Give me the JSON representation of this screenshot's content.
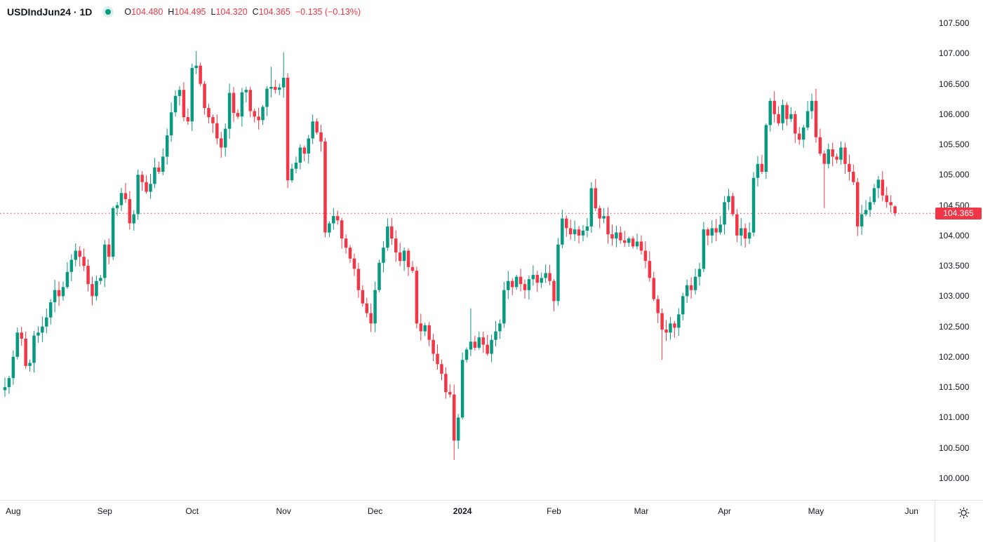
{
  "header": {
    "symbol": "USDIndJun24",
    "separator": "·",
    "interval": "1D",
    "ohlc": {
      "open_label": "O",
      "open": "104.480",
      "high_label": "H",
      "high": "104.495",
      "low_label": "L",
      "low": "104.320",
      "close_label": "C",
      "close": "104.365",
      "change": "−0.135 (−0.13%)"
    }
  },
  "colors": {
    "up": "#089981",
    "down": "#f23645",
    "text": "#131722",
    "axis_border": "#e0e3eb",
    "price_line": "#f23645",
    "price_label_bg": "#f23645",
    "price_label_text": "#ffffff",
    "status_dot": "#089981",
    "status_halo": "rgba(8,153,129,0.15)"
  },
  "price_axis": {
    "current_label": "104.365",
    "tick_format_decimals": 3,
    "yticks": [
      107.5,
      107.0,
      106.5,
      106.0,
      105.5,
      105.0,
      104.5,
      104.0,
      103.5,
      103.0,
      102.5,
      102.0,
      101.5,
      101.0,
      100.5,
      100.0
    ]
  },
  "time_axis": {
    "months": [
      {
        "label": "Aug",
        "index": 2,
        "bold": false
      },
      {
        "label": "Sep",
        "index": 24,
        "bold": false
      },
      {
        "label": "Oct",
        "index": 45,
        "bold": false
      },
      {
        "label": "Nov",
        "index": 67,
        "bold": false
      },
      {
        "label": "Dec",
        "index": 89,
        "bold": false
      },
      {
        "label": "2024",
        "index": 110,
        "bold": true
      },
      {
        "label": "Feb",
        "index": 132,
        "bold": false
      },
      {
        "label": "Mar",
        "index": 153,
        "bold": false
      },
      {
        "label": "Apr",
        "index": 173,
        "bold": false
      },
      {
        "label": "May",
        "index": 195,
        "bold": false
      },
      {
        "label": "Jun",
        "index": 218,
        "bold": false
      }
    ]
  },
  "chart_data": {
    "type": "candlestick",
    "title": "USDIndJun24 · 1D",
    "interval": "1D",
    "x_range": "Aug 2023 - Jun 2024 (daily candles)",
    "ylim": [
      99.6,
      107.9
    ],
    "grid": false,
    "current_price": 104.365,
    "current_price_line": "dotted-red",
    "last_candle": {
      "open": 104.48,
      "high": 104.495,
      "low": 104.32,
      "close": 104.365
    },
    "first_open": 101.45,
    "open_rule": "previous_close",
    "closes": [
      101.5,
      101.65,
      102.0,
      102.4,
      102.3,
      101.85,
      101.9,
      102.35,
      102.4,
      102.5,
      102.65,
      102.9,
      103.1,
      103.0,
      103.15,
      103.4,
      103.6,
      103.75,
      103.65,
      103.5,
      103.2,
      103.0,
      103.25,
      103.3,
      103.85,
      103.65,
      104.45,
      104.5,
      104.7,
      104.6,
      104.2,
      104.35,
      105.0,
      104.88,
      104.72,
      104.85,
      105.12,
      105.05,
      105.3,
      105.65,
      106.03,
      106.3,
      106.4,
      105.95,
      105.88,
      106.76,
      106.8,
      106.5,
      106.1,
      105.95,
      105.85,
      105.6,
      105.45,
      105.76,
      106.35,
      106.02,
      105.96,
      106.36,
      106.4,
      106.05,
      105.96,
      105.9,
      106.12,
      106.42,
      106.45,
      106.4,
      106.44,
      106.6,
      104.91,
      105.1,
      105.2,
      105.45,
      105.35,
      105.6,
      105.88,
      105.7,
      105.55,
      104.05,
      104.2,
      104.32,
      104.25,
      103.95,
      103.8,
      103.62,
      103.45,
      103.1,
      102.88,
      102.72,
      102.55,
      103.1,
      103.55,
      103.8,
      104.15,
      103.95,
      103.72,
      103.58,
      103.75,
      103.48,
      103.42,
      102.55,
      102.42,
      102.52,
      102.28,
      102.05,
      101.88,
      101.72,
      101.42,
      101.38,
      100.62,
      101.0,
      101.95,
      102.12,
      102.25,
      102.15,
      102.32,
      102.2,
      102.05,
      102.28,
      102.42,
      102.55,
      103.1,
      103.25,
      103.15,
      103.32,
      103.2,
      103.1,
      103.28,
      103.35,
      103.22,
      103.3,
      103.38,
      103.25,
      102.92,
      103.85,
      104.28,
      104.12,
      104.02,
      104.1,
      104.0,
      104.08,
      104.15,
      104.78,
      104.45,
      104.28,
      104.32,
      104.02,
      103.95,
      104.05,
      103.92,
      103.88,
      103.95,
      103.82,
      103.9,
      103.75,
      103.58,
      103.3,
      102.95,
      102.72,
      102.45,
      102.4,
      102.55,
      102.48,
      102.7,
      103.0,
      103.18,
      103.1,
      103.32,
      103.45,
      104.1,
      104.0,
      104.12,
      104.05,
      104.18,
      104.55,
      104.65,
      104.35,
      104.0,
      104.12,
      103.95,
      104.05,
      104.95,
      105.18,
      105.05,
      105.82,
      106.22,
      106.0,
      105.85,
      106.15,
      105.92,
      106.0,
      105.68,
      105.58,
      105.78,
      106.05,
      106.22,
      105.62,
      105.35,
      105.18,
      105.42,
      105.3,
      105.25,
      105.45,
      105.18,
      105.05,
      104.88,
      104.15,
      104.35,
      104.42,
      104.55,
      104.78,
      104.92,
      104.66,
      104.55,
      104.5,
      104.365
    ],
    "wick_overrides": {
      "46": {
        "h": 107.04
      },
      "52": {
        "l": 105.28
      },
      "64": {
        "h": 106.78
      },
      "67": {
        "h": 107.02
      },
      "68": {
        "l": 104.78
      },
      "77": {
        "l": 103.97
      },
      "88": {
        "l": 102.41
      },
      "108": {
        "l": 100.3
      },
      "112": {
        "h": 102.8
      },
      "141": {
        "h": 104.88
      },
      "158": {
        "l": 101.95
      },
      "195": {
        "h": 106.42
      },
      "197": {
        "l": 104.45
      },
      "205": {
        "l": 103.99
      },
      "214": {
        "o": 104.48,
        "h": 104.495,
        "l": 104.32,
        "c": 104.365
      }
    }
  }
}
